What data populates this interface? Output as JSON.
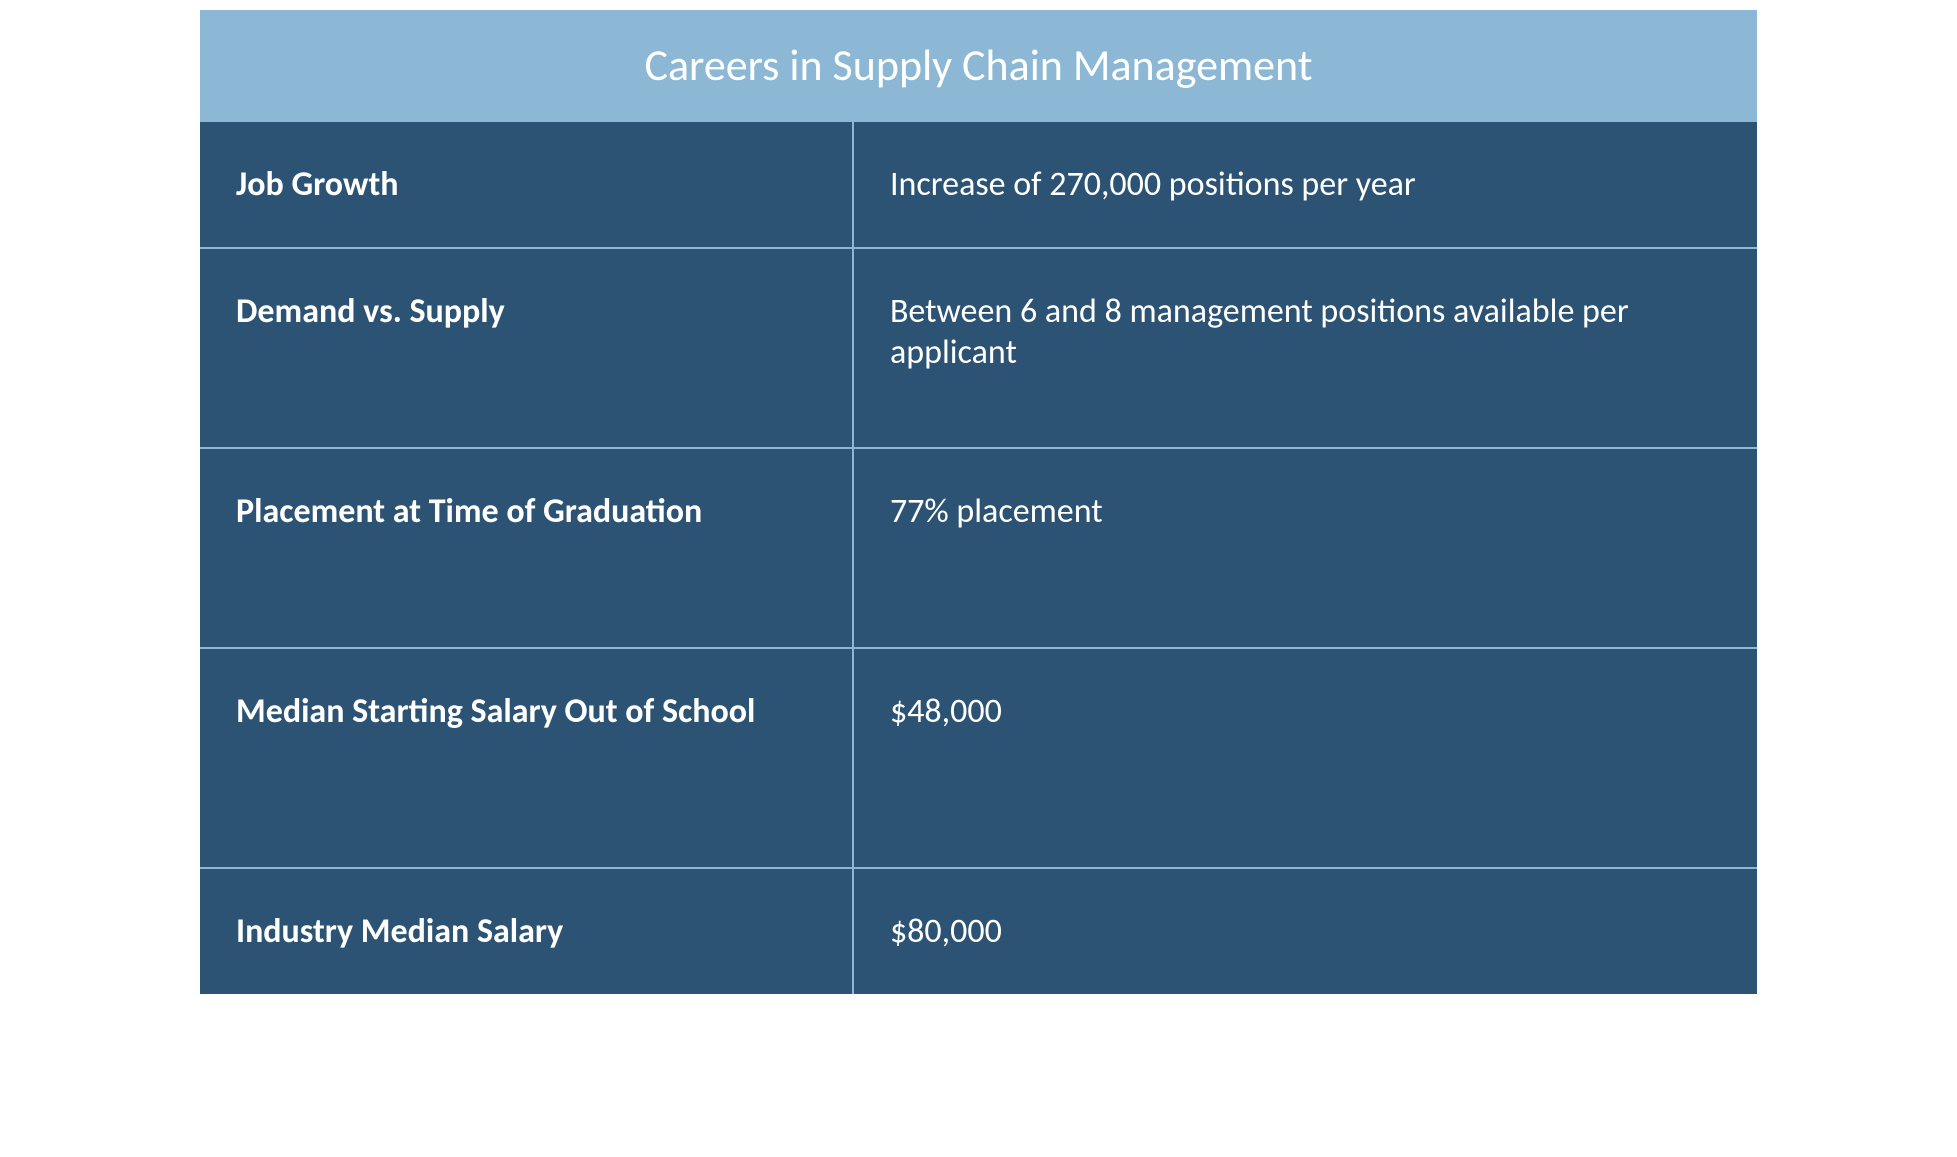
{
  "table": {
    "title": "Careers in Supply Chain Management",
    "header_bg_color": "#8cb8d5",
    "header_text_color": "#ffffff",
    "row_bg_color": "#2c5373",
    "row_text_color": "#ffffff",
    "border_color": "#8cb8d5",
    "title_fontsize": 44,
    "label_fontsize": 34,
    "value_fontsize": 34,
    "rows": [
      {
        "label": "Job Growth",
        "value": "Increase of 270,000 positions per year"
      },
      {
        "label": "Demand vs. Supply",
        "value": "Between 6 and 8 management positions available per applicant"
      },
      {
        "label": "Placement at Time of Graduation",
        "value": "77% placement"
      },
      {
        "label": "Median Starting Salary Out of School",
        "value": "$48,000"
      },
      {
        "label": "Industry Median Salary",
        "value": "$80,000"
      }
    ]
  }
}
